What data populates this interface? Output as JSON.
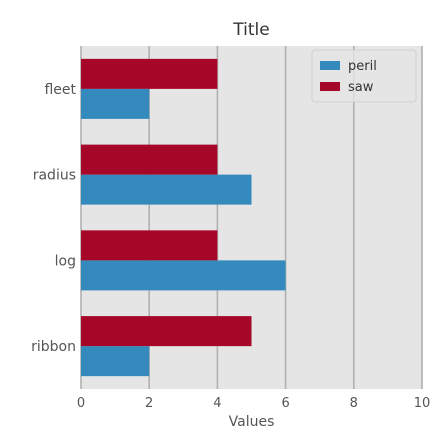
{
  "chart_data": {
    "type": "bar",
    "orientation": "horizontal",
    "title": "Title",
    "xlabel": "Values",
    "ylabel": "",
    "xlim": [
      0,
      10
    ],
    "xticks": [
      0,
      2,
      4,
      6,
      8,
      10
    ],
    "categories": [
      "ribbon",
      "log",
      "radius",
      "fleet"
    ],
    "series": [
      {
        "name": "peril",
        "color": "#348abd",
        "values": [
          2,
          6,
          5,
          2
        ]
      },
      {
        "name": "saw",
        "color": "#a60628",
        "values": [
          5,
          4,
          4,
          4
        ]
      }
    ],
    "grid": true,
    "legend_position": "top-right",
    "background": "#e5e5e5"
  }
}
